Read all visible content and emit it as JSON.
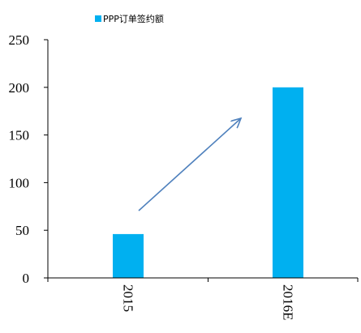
{
  "chart_data": {
    "type": "bar",
    "categories": [
      "2015",
      "2016E"
    ],
    "series": [
      {
        "name": "PPP订单签约额",
        "values": [
          46,
          200
        ]
      }
    ],
    "title": "",
    "xlabel": "",
    "ylabel": "",
    "ylim": [
      0,
      250
    ],
    "yticks": [
      0,
      50,
      100,
      150,
      200,
      250
    ],
    "grid": false,
    "legend_position": "top-left",
    "bar_color": "#00B0F0",
    "arrow_color": "#4F81BD",
    "annotations": [
      {
        "type": "trend-arrow",
        "from_category": "2015",
        "to_category": "2016E"
      }
    ]
  }
}
